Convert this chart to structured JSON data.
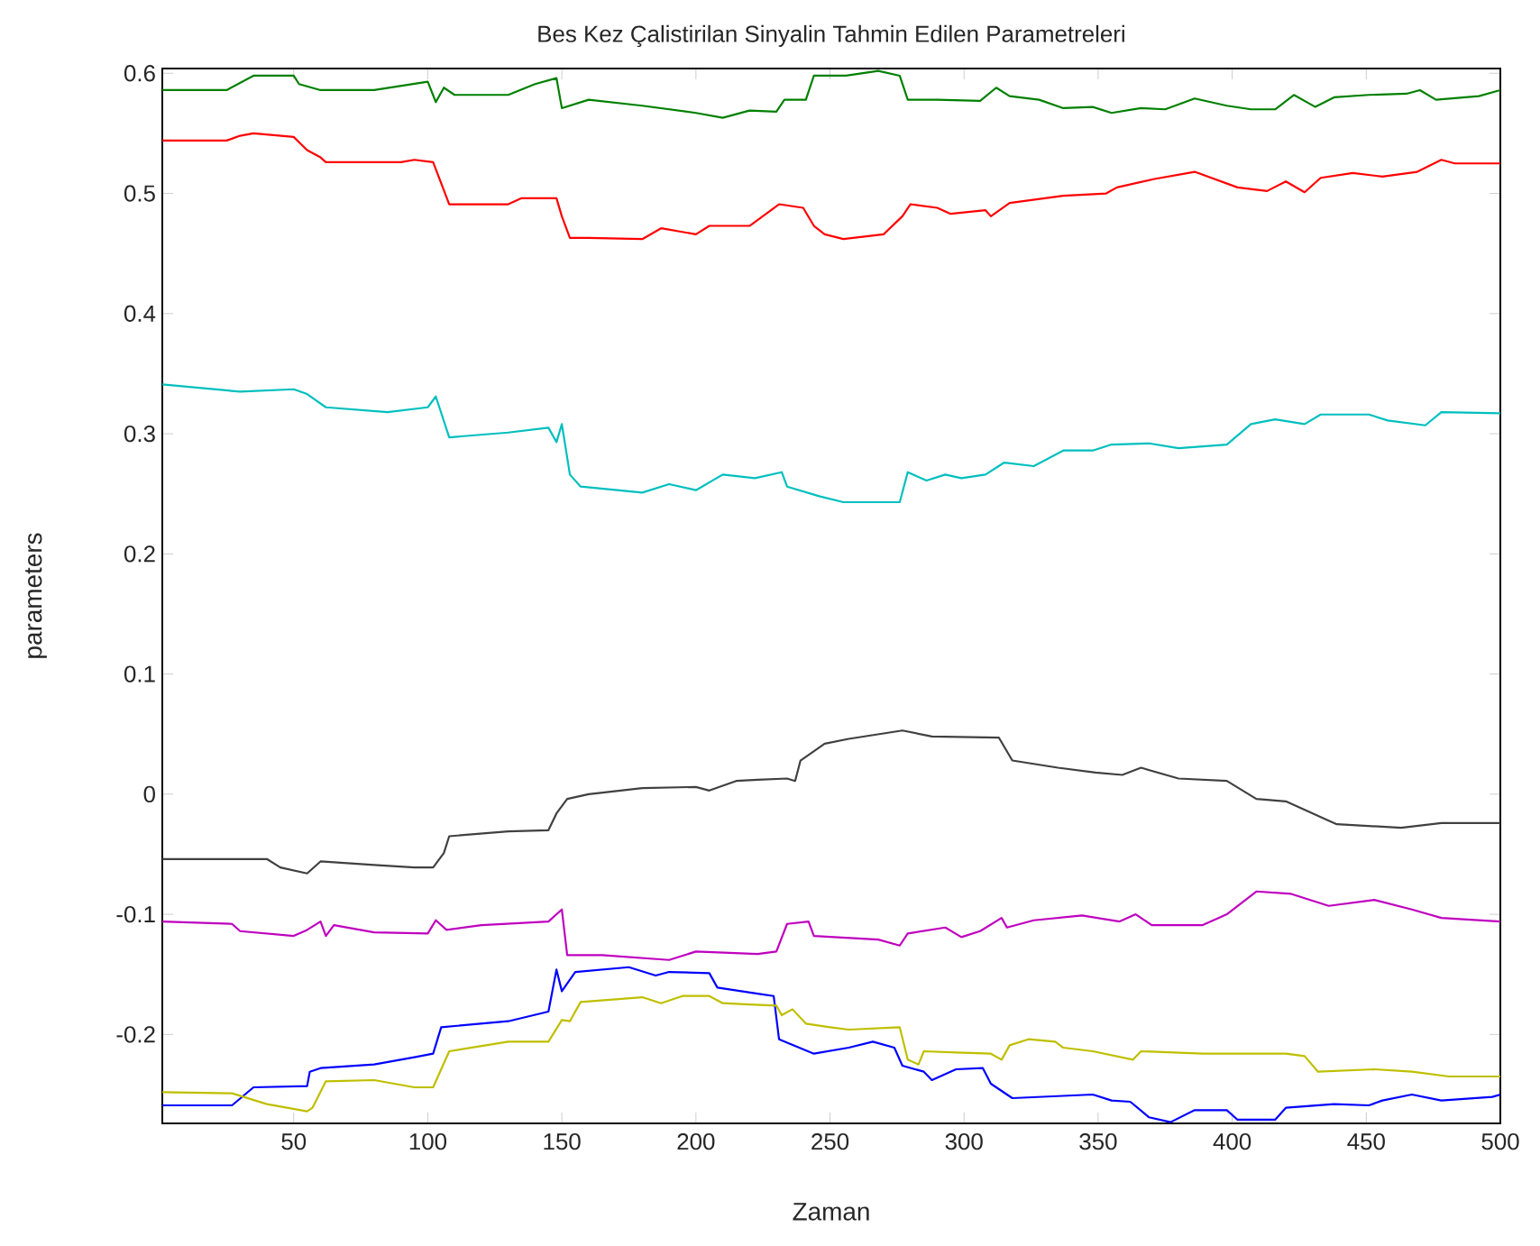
{
  "chart_data": {
    "type": "line",
    "title": "Bes Kez Çalistirilan Sinyalin Tahmin Edilen Parametreleri",
    "xlabel": "Zaman",
    "ylabel": "parameters",
    "xlim": [
      1,
      500
    ],
    "ylim": [
      -0.274,
      0.604
    ],
    "xticks": [
      50,
      100,
      150,
      200,
      250,
      300,
      350,
      400,
      450,
      500
    ],
    "yticks": [
      -0.2,
      -0.1,
      0,
      0.1,
      0.2,
      0.3,
      0.4,
      0.5,
      0.6
    ],
    "series": [
      {
        "color": "#008000",
        "x": [
          1,
          25,
          35,
          50,
          52,
          60,
          80,
          100,
          103,
          106,
          110,
          130,
          140,
          148,
          150,
          160,
          180,
          200,
          210,
          220,
          230,
          233,
          241,
          244,
          256,
          268,
          276,
          279,
          290,
          306,
          312,
          317,
          328,
          337,
          348,
          355,
          366,
          375,
          386,
          398,
          407,
          416,
          423,
          431,
          438,
          451,
          465,
          470,
          476,
          492,
          500
        ],
        "values": [
          0.586,
          0.586,
          0.598,
          0.598,
          0.591,
          0.586,
          0.586,
          0.593,
          0.576,
          0.588,
          0.582,
          0.582,
          0.591,
          0.596,
          0.571,
          0.578,
          0.573,
          0.567,
          0.563,
          0.569,
          0.568,
          0.578,
          0.578,
          0.598,
          0.598,
          0.602,
          0.598,
          0.578,
          0.578,
          0.577,
          0.588,
          0.581,
          0.578,
          0.571,
          0.572,
          0.567,
          0.571,
          0.57,
          0.579,
          0.573,
          0.57,
          0.57,
          0.582,
          0.572,
          0.58,
          0.582,
          0.583,
          0.586,
          0.578,
          0.581,
          0.586
        ]
      },
      {
        "color": "#ff0000",
        "x": [
          1,
          25,
          30,
          35,
          50,
          55,
          60,
          62,
          90,
          95,
          102,
          108,
          130,
          135,
          148,
          150,
          153,
          160,
          180,
          187,
          200,
          205,
          220,
          231,
          240,
          244,
          248,
          255,
          270,
          277,
          280,
          290,
          295,
          308,
          310,
          317,
          337,
          353,
          357,
          371,
          386,
          402,
          413,
          420,
          427,
          433,
          445,
          456,
          469,
          478,
          483,
          500
        ],
        "values": [
          0.544,
          0.544,
          0.548,
          0.55,
          0.547,
          0.536,
          0.53,
          0.526,
          0.526,
          0.528,
          0.526,
          0.491,
          0.491,
          0.496,
          0.496,
          0.481,
          0.463,
          0.463,
          0.462,
          0.471,
          0.466,
          0.473,
          0.473,
          0.491,
          0.488,
          0.473,
          0.466,
          0.462,
          0.466,
          0.481,
          0.491,
          0.488,
          0.483,
          0.486,
          0.481,
          0.492,
          0.498,
          0.5,
          0.505,
          0.512,
          0.518,
          0.505,
          0.502,
          0.51,
          0.501,
          0.513,
          0.517,
          0.514,
          0.518,
          0.528,
          0.525,
          0.525
        ]
      },
      {
        "color": "#00bfbf",
        "x": [
          1,
          30,
          50,
          55,
          62,
          85,
          100,
          103,
          108,
          130,
          145,
          148,
          150,
          153,
          157,
          180,
          190,
          200,
          210,
          222,
          232,
          234,
          246,
          255,
          268,
          276,
          279,
          286,
          293,
          299,
          308,
          315,
          326,
          337,
          348,
          355,
          369,
          380,
          398,
          407,
          416,
          427,
          433,
          451,
          458,
          472,
          478,
          500
        ],
        "values": [
          0.341,
          0.335,
          0.337,
          0.333,
          0.322,
          0.318,
          0.322,
          0.331,
          0.297,
          0.301,
          0.305,
          0.293,
          0.308,
          0.266,
          0.256,
          0.251,
          0.258,
          0.253,
          0.266,
          0.263,
          0.268,
          0.256,
          0.248,
          0.243,
          0.243,
          0.243,
          0.268,
          0.261,
          0.266,
          0.263,
          0.266,
          0.276,
          0.273,
          0.286,
          0.286,
          0.291,
          0.292,
          0.288,
          0.291,
          0.308,
          0.312,
          0.308,
          0.316,
          0.316,
          0.311,
          0.307,
          0.318,
          0.317
        ]
      },
      {
        "color": "#404040",
        "x": [
          1,
          40,
          45,
          55,
          60,
          80,
          95,
          102,
          106,
          108,
          130,
          145,
          148,
          152,
          160,
          180,
          200,
          205,
          215,
          223,
          234,
          237,
          239,
          248,
          257,
          277,
          288,
          313,
          318,
          335,
          349,
          359,
          366,
          380,
          398,
          409,
          420,
          433,
          439,
          463,
          478,
          500
        ],
        "values": [
          -0.054,
          -0.054,
          -0.061,
          -0.066,
          -0.056,
          -0.059,
          -0.061,
          -0.061,
          -0.049,
          -0.035,
          -0.031,
          -0.03,
          -0.016,
          -0.004,
          0.0,
          0.005,
          0.006,
          0.003,
          0.011,
          0.012,
          0.013,
          0.011,
          0.028,
          0.042,
          0.046,
          0.053,
          0.048,
          0.047,
          0.028,
          0.022,
          0.018,
          0.016,
          0.022,
          0.013,
          0.011,
          -0.004,
          -0.006,
          -0.019,
          -0.025,
          -0.028,
          -0.024,
          -0.024
        ]
      },
      {
        "color": "#bf00bf",
        "x": [
          1,
          27,
          30,
          50,
          55,
          60,
          62,
          65,
          80,
          100,
          103,
          107,
          120,
          145,
          150,
          152,
          165,
          190,
          200,
          223,
          230,
          234,
          242,
          244,
          268,
          276,
          279,
          293,
          299,
          306,
          314,
          316,
          326,
          344,
          358,
          364,
          370,
          389,
          398,
          409,
          422,
          436,
          453,
          467,
          478,
          500
        ],
        "values": [
          -0.106,
          -0.108,
          -0.114,
          -0.118,
          -0.113,
          -0.106,
          -0.118,
          -0.109,
          -0.115,
          -0.116,
          -0.105,
          -0.113,
          -0.109,
          -0.106,
          -0.096,
          -0.134,
          -0.134,
          -0.138,
          -0.131,
          -0.133,
          -0.131,
          -0.108,
          -0.106,
          -0.118,
          -0.121,
          -0.126,
          -0.116,
          -0.111,
          -0.119,
          -0.114,
          -0.103,
          -0.111,
          -0.105,
          -0.101,
          -0.106,
          -0.1,
          -0.109,
          -0.109,
          -0.1,
          -0.081,
          -0.083,
          -0.093,
          -0.088,
          -0.096,
          -0.103,
          -0.106
        ]
      },
      {
        "color": "#0000ff",
        "x": [
          1,
          27,
          35,
          55,
          56,
          60,
          80,
          95,
          102,
          105,
          130,
          145,
          148,
          150,
          155,
          175,
          185,
          190,
          205,
          208,
          223,
          229,
          231,
          244,
          257,
          266,
          274,
          277,
          285,
          288,
          297,
          307,
          310,
          318,
          348,
          355,
          362,
          369,
          377,
          386,
          398,
          402,
          416,
          420,
          438,
          451,
          456,
          467,
          478,
          497,
          500
        ],
        "values": [
          -0.259,
          -0.259,
          -0.244,
          -0.243,
          -0.231,
          -0.228,
          -0.225,
          -0.219,
          -0.216,
          -0.194,
          -0.189,
          -0.181,
          -0.146,
          -0.164,
          -0.148,
          -0.144,
          -0.151,
          -0.148,
          -0.149,
          -0.161,
          -0.166,
          -0.168,
          -0.204,
          -0.216,
          -0.211,
          -0.206,
          -0.211,
          -0.226,
          -0.231,
          -0.238,
          -0.229,
          -0.228,
          -0.241,
          -0.253,
          -0.25,
          -0.255,
          -0.256,
          -0.269,
          -0.273,
          -0.263,
          -0.263,
          -0.271,
          -0.271,
          -0.261,
          -0.258,
          -0.259,
          -0.255,
          -0.25,
          -0.255,
          -0.252,
          -0.25
        ]
      },
      {
        "color": "#bfbf00",
        "x": [
          1,
          27,
          40,
          55,
          57,
          62,
          80,
          95,
          102,
          108,
          130,
          145,
          150,
          153,
          157,
          180,
          187,
          195,
          205,
          210,
          220,
          230,
          232,
          236,
          241,
          250,
          257,
          276,
          279,
          283,
          285,
          297,
          310,
          314,
          317,
          324,
          334,
          337,
          348,
          363,
          366,
          389,
          407,
          420,
          427,
          432,
          453,
          467,
          481,
          500
        ],
        "values": [
          -0.248,
          -0.249,
          -0.258,
          -0.264,
          -0.261,
          -0.239,
          -0.238,
          -0.244,
          -0.244,
          -0.214,
          -0.206,
          -0.206,
          -0.188,
          -0.189,
          -0.173,
          -0.169,
          -0.174,
          -0.168,
          -0.168,
          -0.174,
          -0.175,
          -0.176,
          -0.184,
          -0.179,
          -0.191,
          -0.194,
          -0.196,
          -0.194,
          -0.221,
          -0.225,
          -0.214,
          -0.215,
          -0.216,
          -0.221,
          -0.209,
          -0.204,
          -0.206,
          -0.211,
          -0.214,
          -0.221,
          -0.214,
          -0.216,
          -0.216,
          -0.216,
          -0.218,
          -0.231,
          -0.229,
          -0.231,
          -0.235,
          -0.235
        ]
      }
    ]
  }
}
